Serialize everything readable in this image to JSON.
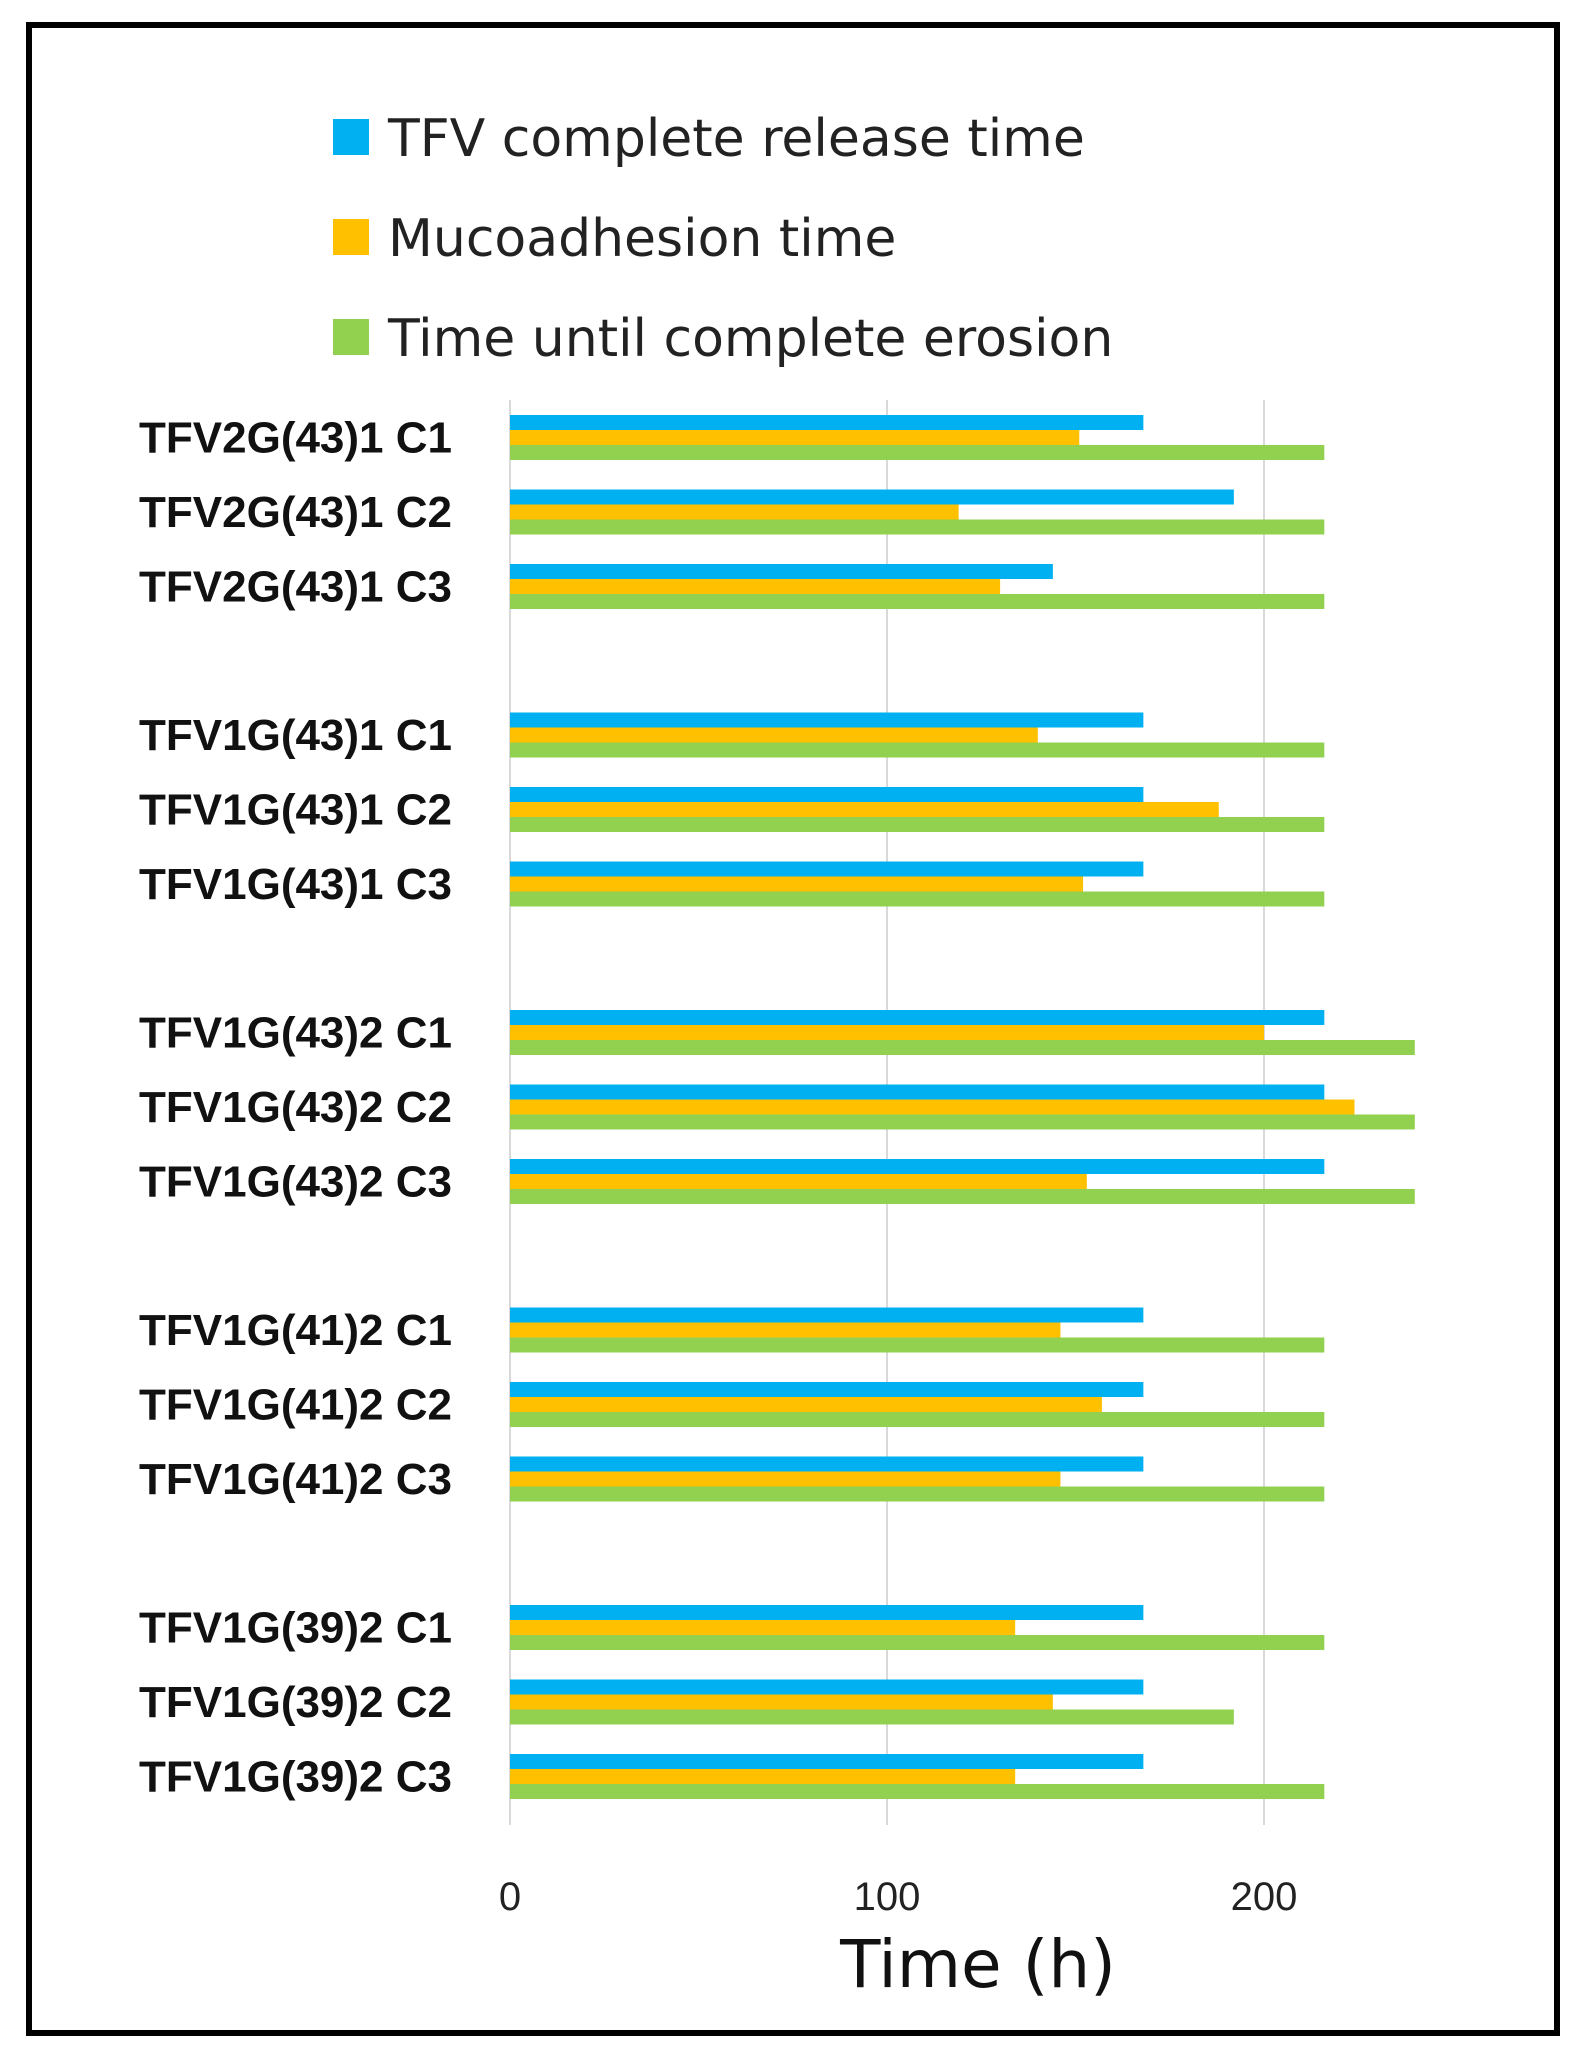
{
  "chart_data": {
    "type": "bar",
    "orientation": "horizontal",
    "xlabel": "Time (h)",
    "xlim": [
      0,
      240
    ],
    "xticks": [
      0,
      100,
      200
    ],
    "grid": true,
    "legend_position": "top",
    "categories": [
      "TFV2G(43)1 C1",
      "TFV2G(43)1 C2",
      "TFV2G(43)1 C3",
      "TFV1G(43)1 C1",
      "TFV1G(43)1 C2",
      "TFV1G(43)1 C3",
      "TFV1G(43)2 C1",
      "TFV1G(43)2 C2",
      "TFV1G(43)2 C3",
      "TFV1G(41)2 C1",
      "TFV1G(41)2 C2",
      "TFV1G(41)2 C3",
      "TFV1G(39)2 C1",
      "TFV1G(39)2 C2",
      "TFV1G(39)2 C3"
    ],
    "groups": [
      3,
      3,
      3,
      3,
      3
    ],
    "series": [
      {
        "name": "TFV complete release time",
        "color": "#00b0f0",
        "values": [
          168,
          192,
          144,
          168,
          168,
          168,
          216,
          216,
          216,
          168,
          168,
          168,
          168,
          168,
          168
        ]
      },
      {
        "name": "Mucoadhesion time",
        "color": "#ffc000",
        "values": [
          151,
          119,
          130,
          140,
          188,
          152,
          200,
          224,
          153,
          146,
          157,
          146,
          134,
          144,
          134
        ]
      },
      {
        "name": "Time until complete erosion",
        "color": "#92d050",
        "values": [
          216,
          216,
          216,
          216,
          216,
          216,
          240,
          240,
          240,
          216,
          216,
          216,
          216,
          192,
          216
        ]
      }
    ]
  }
}
